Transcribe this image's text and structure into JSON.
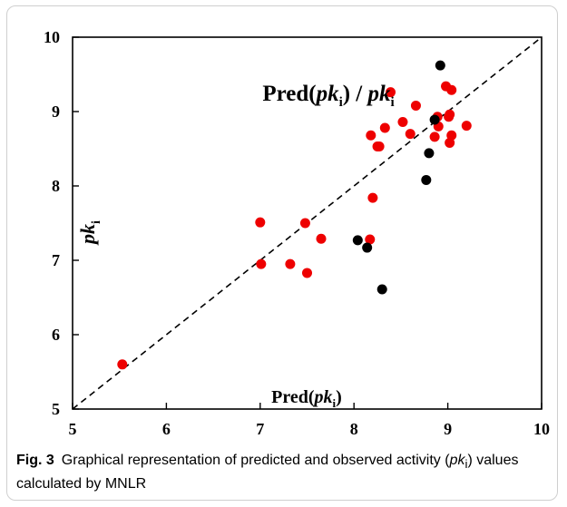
{
  "chart_data": {
    "type": "scatter",
    "title": {
      "prefix": "Pred(",
      "italic": "pk",
      "sub": "i",
      "suffix": ") / ",
      "italic2": "pk",
      "sub2": "i"
    },
    "xlabel": {
      "prefix": "Pred(",
      "italic": "pk",
      "sub": "i",
      "suffix": ")"
    },
    "ylabel": {
      "italic": "pk",
      "sub": "i"
    },
    "xlim": [
      5,
      10
    ],
    "ylim": [
      5,
      10
    ],
    "xticks": [
      "5",
      "6",
      "7",
      "8",
      "9",
      "10"
    ],
    "yticks": [
      "5",
      "6",
      "7",
      "8",
      "9",
      "10"
    ],
    "grid": false,
    "reference_line": {
      "from": [
        5,
        5
      ],
      "to": [
        10,
        10
      ],
      "style": "dashed"
    },
    "series": [
      {
        "color": "#ee0000",
        "points": [
          {
            "x": 5.53,
            "y": 5.6
          },
          {
            "x": 7.0,
            "y": 7.51
          },
          {
            "x": 7.01,
            "y": 6.95
          },
          {
            "x": 7.32,
            "y": 6.95
          },
          {
            "x": 7.48,
            "y": 7.5
          },
          {
            "x": 7.5,
            "y": 6.83
          },
          {
            "x": 7.65,
            "y": 7.29
          },
          {
            "x": 8.17,
            "y": 7.28
          },
          {
            "x": 8.2,
            "y": 7.84
          },
          {
            "x": 8.18,
            "y": 8.68
          },
          {
            "x": 8.25,
            "y": 8.53
          },
          {
            "x": 8.27,
            "y": 8.53
          },
          {
            "x": 8.33,
            "y": 8.78
          },
          {
            "x": 8.39,
            "y": 9.26
          },
          {
            "x": 8.52,
            "y": 8.86
          },
          {
            "x": 8.6,
            "y": 8.7
          },
          {
            "x": 8.66,
            "y": 9.08
          },
          {
            "x": 8.86,
            "y": 8.66
          },
          {
            "x": 8.89,
            "y": 8.93
          },
          {
            "x": 8.9,
            "y": 8.8
          },
          {
            "x": 8.98,
            "y": 9.34
          },
          {
            "x": 9.01,
            "y": 8.93
          },
          {
            "x": 9.02,
            "y": 8.96
          },
          {
            "x": 9.02,
            "y": 8.58
          },
          {
            "x": 9.04,
            "y": 9.29
          },
          {
            "x": 9.04,
            "y": 8.68
          },
          {
            "x": 9.2,
            "y": 8.81
          }
        ]
      },
      {
        "color": "#000000",
        "points": [
          {
            "x": 8.04,
            "y": 7.27
          },
          {
            "x": 8.14,
            "y": 7.17
          },
          {
            "x": 8.3,
            "y": 6.61
          },
          {
            "x": 8.77,
            "y": 8.08
          },
          {
            "x": 8.8,
            "y": 8.44
          },
          {
            "x": 8.86,
            "y": 8.89
          },
          {
            "x": 8.92,
            "y": 9.62
          }
        ]
      }
    ]
  },
  "caption": {
    "label": "Fig. 3",
    "text_before": "Graphical representation of predicted and observed activity (",
    "italic": "pk",
    "sub": "i",
    "text_after": ") values calculated by MNLR"
  }
}
